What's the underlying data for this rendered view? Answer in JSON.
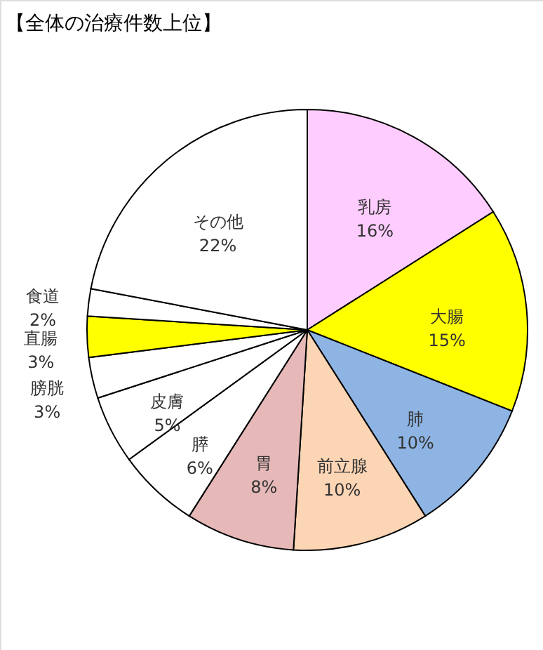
{
  "chart_data": {
    "type": "pie",
    "title": "【全体の治療件数上位】",
    "categories": [
      "乳房",
      "大腸",
      "肺",
      "前立腺",
      "胃",
      "膵",
      "皮膚",
      "膀胱",
      "直腸",
      "食道",
      "その他"
    ],
    "values": [
      16,
      15,
      10,
      10,
      8,
      6,
      5,
      3,
      3,
      2,
      22
    ],
    "value_labels": [
      "16%",
      "15%",
      "10%",
      "10%",
      "8%",
      "6%",
      "5%",
      "3%",
      "3%",
      "2%",
      "22%"
    ],
    "colors": [
      "#ffccff",
      "#ffff00",
      "#8eb4e3",
      "#fcd5b5",
      "#e6b9b8",
      "#ffffff",
      "#ffffff",
      "#ffffff",
      "#ffff00",
      "#ffffff",
      "#ffffff"
    ],
    "legend": false
  }
}
